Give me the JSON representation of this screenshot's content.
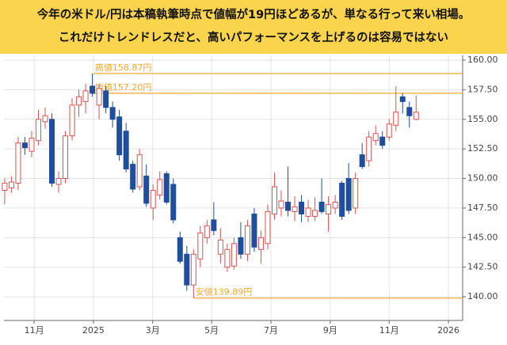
{
  "chart_data": {
    "type": "candlestick",
    "title_lines": [
      "今年の米ドル/円は本稿執筆時点で値幅が19円ほどあるが、単なる行って来い相場。",
      "これだけトレンドレスだと、高いパフォーマンスを上げるのは容易ではない"
    ],
    "x": [
      2024.75,
      2024.769,
      2024.788,
      2024.807,
      2024.826,
      2024.845,
      2024.864,
      2024.883,
      2024.902,
      2024.921,
      2024.94,
      2024.959,
      2024.978,
      2024.997,
      2025.016,
      2025.035,
      2025.054,
      2025.073,
      2025.092,
      2025.111,
      2025.13,
      2025.149,
      2025.168,
      2025.187,
      2025.206,
      2025.225,
      2025.244,
      2025.263,
      2025.282,
      2025.301,
      2025.32,
      2025.339,
      2025.358,
      2025.377,
      2025.396,
      2025.415,
      2025.434,
      2025.453,
      2025.472,
      2025.491,
      2025.51,
      2025.529,
      2025.548,
      2025.567,
      2025.586,
      2025.605,
      2025.624,
      2025.643,
      2025.662,
      2025.681,
      2025.7,
      2025.719,
      2025.738,
      2025.757,
      2025.776,
      2025.795,
      2025.814,
      2025.833,
      2025.852,
      2025.871,
      2025.89,
      2025.909
    ],
    "open": [
      149.0,
      149.2,
      149.6,
      153.0,
      152.3,
      153.2,
      154.8,
      155.0,
      149.5,
      150.0,
      153.6,
      156.2,
      156.5,
      157.8,
      156.2,
      157.4,
      156.0,
      155.2,
      154.0,
      151.2,
      149.3,
      150.2,
      147.5,
      148.6,
      150.4,
      149.5,
      145.0,
      143.6,
      141.0,
      143.2,
      145.0,
      146.5,
      143.6,
      142.5,
      142.6,
      145.0,
      143.6,
      147.0,
      144.0,
      144.5,
      147.0,
      147.5,
      148.0,
      147.2,
      148.0,
      146.8,
      146.8,
      148.0,
      147.0,
      147.5,
      149.6,
      150.0,
      147.5,
      152.0,
      151.5,
      153.2,
      153.5,
      153.5,
      154.5,
      156.9,
      156.0,
      155.0
    ],
    "high": [
      150.0,
      150.2,
      153.5,
      153.5,
      154.0,
      155.8,
      156.0,
      155.5,
      150.6,
      154.0,
      156.8,
      157.5,
      158.0,
      158.87,
      158.0,
      157.8,
      156.5,
      155.8,
      154.7,
      151.5,
      152.5,
      151.2,
      149.5,
      150.6,
      150.6,
      150.0,
      145.5,
      144.3,
      144.0,
      146.0,
      146.5,
      148.0,
      145.8,
      144.5,
      145.0,
      146.3,
      146.5,
      147.5,
      145.6,
      147.8,
      150.5,
      149.0,
      151.0,
      148.5,
      148.6,
      148.2,
      148.4,
      150.0,
      148.5,
      148.6,
      149.8,
      151.3,
      150.5,
      153.0,
      154.0,
      154.5,
      154.0,
      155.0,
      157.8,
      157.2,
      156.5,
      157.0
    ],
    "low": [
      147.8,
      148.8,
      149.0,
      152.0,
      151.8,
      152.8,
      154.2,
      149.3,
      148.8,
      149.6,
      153.2,
      155.2,
      155.5,
      156.9,
      155.0,
      155.5,
      154.3,
      151.5,
      150.5,
      148.8,
      149.0,
      147.6,
      146.5,
      148.2,
      147.8,
      146.2,
      142.8,
      140.5,
      139.89,
      142.5,
      144.5,
      145.2,
      142.8,
      142.1,
      142.3,
      143.2,
      143.0,
      143.8,
      142.8,
      144.0,
      146.5,
      146.8,
      146.8,
      146.4,
      146.3,
      146.3,
      146.4,
      147.0,
      145.5,
      147.0,
      146.5,
      147.0,
      147.0,
      150.8,
      151.0,
      152.8,
      152.5,
      153.2,
      154.0,
      155.5,
      154.3,
      154.9
    ],
    "close": [
      149.6,
      149.7,
      153.0,
      152.6,
      153.4,
      155.0,
      155.3,
      149.6,
      150.0,
      153.6,
      156.2,
      156.9,
      157.4,
      157.2,
      157.6,
      156.0,
      155.0,
      152.0,
      150.8,
      149.1,
      152.0,
      147.9,
      149.0,
      149.9,
      148.0,
      146.5,
      143.0,
      141.0,
      143.6,
      145.4,
      146.0,
      145.6,
      144.8,
      144.0,
      144.5,
      143.6,
      146.0,
      144.2,
      145.0,
      147.2,
      149.3,
      148.1,
      147.3,
      147.6,
      147.0,
      147.5,
      147.3,
      147.2,
      147.8,
      148.0,
      146.8,
      147.3,
      150.0,
      151.0,
      153.5,
      153.8,
      152.8,
      154.6,
      155.6,
      156.5,
      155.3,
      155.6
    ],
    "up_color": "#d9534f",
    "down_color": "#1f4e9c",
    "xlim": [
      2024.748,
      2026.04
    ],
    "xticks": [
      {
        "value": 2024.833,
        "label": "11月"
      },
      {
        "value": 2025,
        "label": "2025"
      },
      {
        "value": 2025.167,
        "label": "3月"
      },
      {
        "value": 2025.333,
        "label": "5月"
      },
      {
        "value": 2025.5,
        "label": "7月"
      },
      {
        "value": 2025.667,
        "label": "9月"
      },
      {
        "value": 2025.833,
        "label": "11月"
      },
      {
        "value": 2026,
        "label": "2026"
      }
    ],
    "ylim": [
      138.0,
      160.4
    ],
    "yticks": [
      {
        "value": 140,
        "label": "140.00"
      },
      {
        "value": 142.5,
        "label": "142.50"
      },
      {
        "value": 145,
        "label": "145.00"
      },
      {
        "value": 147.5,
        "label": "147.50"
      },
      {
        "value": 150,
        "label": "150.00"
      },
      {
        "value": 152.5,
        "label": "152.50"
      },
      {
        "value": 155,
        "label": "155.00"
      },
      {
        "value": 157.5,
        "label": "157.50"
      },
      {
        "value": 160,
        "label": "160.00"
      }
    ],
    "grid": true,
    "annotations": [
      {
        "label": "高値158.87円",
        "value": 158.87,
        "x": 2025.0
      },
      {
        "label": "始値157.20円",
        "value": 157.2,
        "x": 2025.0
      },
      {
        "label": "安値139.89円",
        "value": 139.89,
        "x": 2025.283
      }
    ],
    "annotation_color": "#f0a830"
  }
}
